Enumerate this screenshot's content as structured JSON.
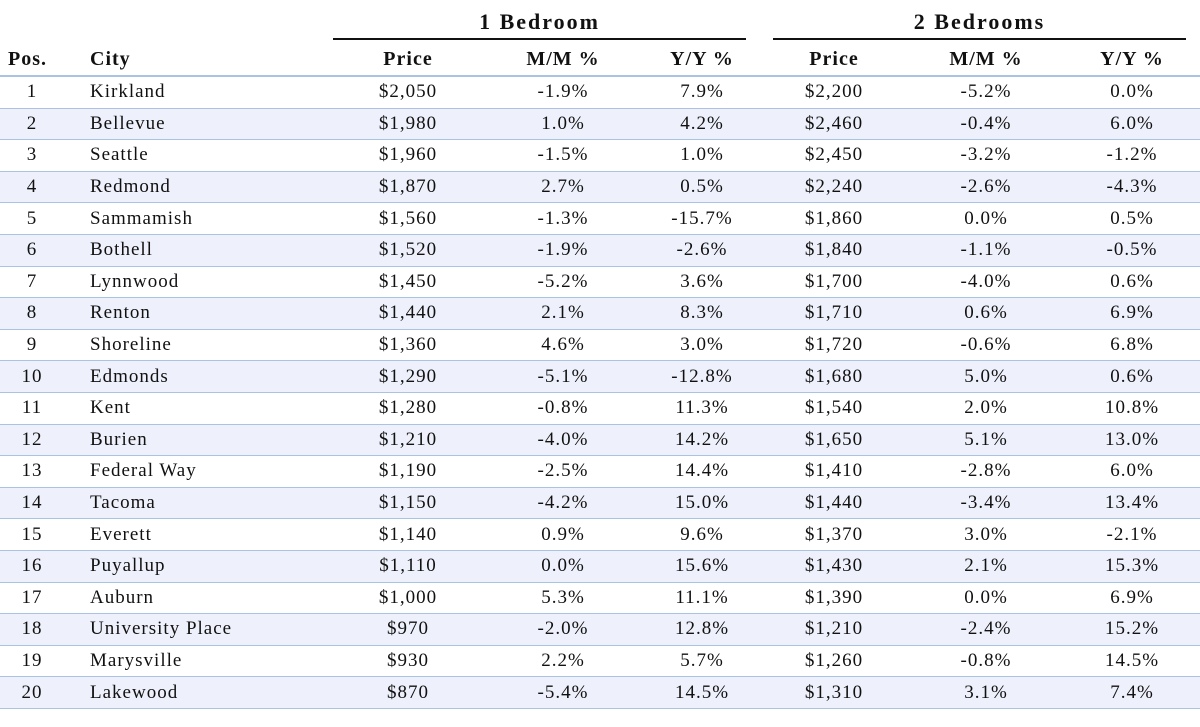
{
  "groups": {
    "one_bedroom": "1 Bedroom",
    "two_bedrooms": "2 Bedrooms"
  },
  "columns": {
    "pos": "Pos.",
    "city": "City",
    "price1": "Price",
    "mm1": "M/M %",
    "yy1": "Y/Y %",
    "price2": "Price",
    "mm2": "M/M %",
    "yy2": "Y/Y %"
  },
  "chart_data": {
    "type": "table",
    "title": "",
    "column_groups": [
      {
        "name": "1 Bedroom",
        "columns": [
          "Price",
          "M/M %",
          "Y/Y %"
        ]
      },
      {
        "name": "2 Bedrooms",
        "columns": [
          "Price",
          "M/M %",
          "Y/Y %"
        ]
      }
    ],
    "rows": [
      {
        "pos": "1",
        "city": "Kirkland",
        "p1": "$2,050",
        "m1": "-1.9%",
        "y1": "7.9%",
        "p2": "$2,200",
        "m2": "-5.2%",
        "y2": "0.0%"
      },
      {
        "pos": "2",
        "city": "Bellevue",
        "p1": "$1,980",
        "m1": "1.0%",
        "y1": "4.2%",
        "p2": "$2,460",
        "m2": "-0.4%",
        "y2": "6.0%"
      },
      {
        "pos": "3",
        "city": "Seattle",
        "p1": "$1,960",
        "m1": "-1.5%",
        "y1": "1.0%",
        "p2": "$2,450",
        "m2": "-3.2%",
        "y2": "-1.2%"
      },
      {
        "pos": "4",
        "city": "Redmond",
        "p1": "$1,870",
        "m1": "2.7%",
        "y1": "0.5%",
        "p2": "$2,240",
        "m2": "-2.6%",
        "y2": "-4.3%"
      },
      {
        "pos": "5",
        "city": "Sammamish",
        "p1": "$1,560",
        "m1": "-1.3%",
        "y1": "-15.7%",
        "p2": "$1,860",
        "m2": "0.0%",
        "y2": "0.5%"
      },
      {
        "pos": "6",
        "city": "Bothell",
        "p1": "$1,520",
        "m1": "-1.9%",
        "y1": "-2.6%",
        "p2": "$1,840",
        "m2": "-1.1%",
        "y2": "-0.5%"
      },
      {
        "pos": "7",
        "city": "Lynnwood",
        "p1": "$1,450",
        "m1": "-5.2%",
        "y1": "3.6%",
        "p2": "$1,700",
        "m2": "-4.0%",
        "y2": "0.6%"
      },
      {
        "pos": "8",
        "city": "Renton",
        "p1": "$1,440",
        "m1": "2.1%",
        "y1": "8.3%",
        "p2": "$1,710",
        "m2": "0.6%",
        "y2": "6.9%"
      },
      {
        "pos": "9",
        "city": "Shoreline",
        "p1": "$1,360",
        "m1": "4.6%",
        "y1": "3.0%",
        "p2": "$1,720",
        "m2": "-0.6%",
        "y2": "6.8%"
      },
      {
        "pos": "10",
        "city": "Edmonds",
        "p1": "$1,290",
        "m1": "-5.1%",
        "y1": "-12.8%",
        "p2": "$1,680",
        "m2": "5.0%",
        "y2": "0.6%"
      },
      {
        "pos": "11",
        "city": "Kent",
        "p1": "$1,280",
        "m1": "-0.8%",
        "y1": "11.3%",
        "p2": "$1,540",
        "m2": "2.0%",
        "y2": "10.8%"
      },
      {
        "pos": "12",
        "city": "Burien",
        "p1": "$1,210",
        "m1": "-4.0%",
        "y1": "14.2%",
        "p2": "$1,650",
        "m2": "5.1%",
        "y2": "13.0%"
      },
      {
        "pos": "13",
        "city": "Federal Way",
        "p1": "$1,190",
        "m1": "-2.5%",
        "y1": "14.4%",
        "p2": "$1,410",
        "m2": "-2.8%",
        "y2": "6.0%"
      },
      {
        "pos": "14",
        "city": "Tacoma",
        "p1": "$1,150",
        "m1": "-4.2%",
        "y1": "15.0%",
        "p2": "$1,440",
        "m2": "-3.4%",
        "y2": "13.4%"
      },
      {
        "pos": "15",
        "city": "Everett",
        "p1": "$1,140",
        "m1": "0.9%",
        "y1": "9.6%",
        "p2": "$1,370",
        "m2": "3.0%",
        "y2": "-2.1%"
      },
      {
        "pos": "16",
        "city": "Puyallup",
        "p1": "$1,110",
        "m1": "0.0%",
        "y1": "15.6%",
        "p2": "$1,430",
        "m2": "2.1%",
        "y2": "15.3%"
      },
      {
        "pos": "17",
        "city": "Auburn",
        "p1": "$1,000",
        "m1": "5.3%",
        "y1": "11.1%",
        "p2": "$1,390",
        "m2": "0.0%",
        "y2": "6.9%"
      },
      {
        "pos": "18",
        "city": "University Place",
        "p1": "$970",
        "m1": "-2.0%",
        "y1": "12.8%",
        "p2": "$1,210",
        "m2": "-2.4%",
        "y2": "15.2%"
      },
      {
        "pos": "19",
        "city": "Marysville",
        "p1": "$930",
        "m1": "2.2%",
        "y1": "5.7%",
        "p2": "$1,260",
        "m2": "-0.8%",
        "y2": "14.5%"
      },
      {
        "pos": "20",
        "city": "Lakewood",
        "p1": "$870",
        "m1": "-5.4%",
        "y1": "14.5%",
        "p2": "$1,310",
        "m2": "3.1%",
        "y2": "7.4%"
      }
    ]
  }
}
